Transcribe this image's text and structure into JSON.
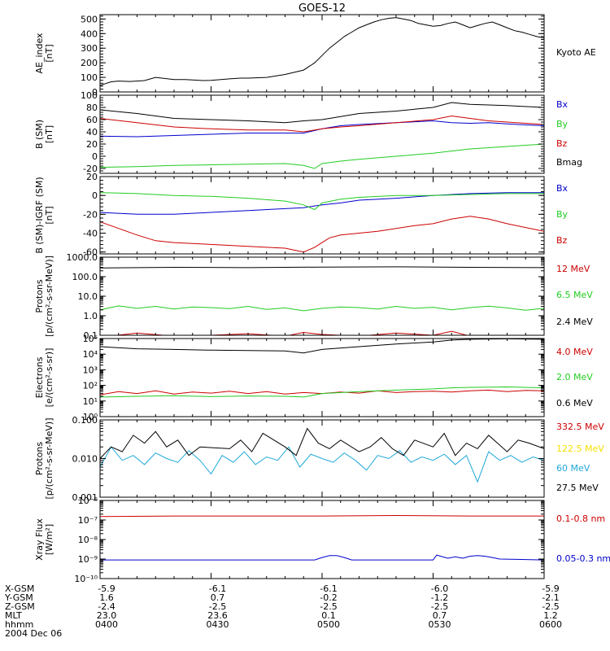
{
  "title": "GOES-12",
  "colors": {
    "black": "#000000",
    "red": "#cc0000",
    "green": "#22cc22",
    "blue": "#0000cc",
    "yellow": "#f5e000",
    "cyan": "#20a8d8",
    "frame": "#000000"
  },
  "x_axis": {
    "range": [
      0,
      120
    ],
    "ticks": [
      0,
      30,
      60,
      90,
      120
    ]
  },
  "chart_data": [
    {
      "id": "ae",
      "type": "line",
      "ylabel": [
        "AE_index",
        "[nT]"
      ],
      "ylim": [
        0,
        530
      ],
      "scale": "linear",
      "yticks": [
        0,
        100,
        200,
        300,
        400,
        500
      ],
      "yticklabels": [
        "0",
        "100",
        "200",
        "300",
        "400",
        "500"
      ],
      "series": [
        {
          "name": "Kyoto AE",
          "color": "#000000",
          "x": [
            0,
            3,
            5,
            8,
            10,
            12,
            15,
            20,
            23,
            25,
            28,
            30,
            35,
            38,
            40,
            45,
            50,
            55,
            58,
            60,
            62,
            64,
            66,
            68,
            70,
            72,
            74,
            76,
            78,
            80,
            82,
            84,
            86,
            88,
            90,
            92,
            94,
            96,
            98,
            100,
            102,
            104,
            106,
            108,
            110,
            112,
            114,
            116,
            118,
            120
          ],
          "y": [
            45,
            70,
            75,
            72,
            75,
            78,
            100,
            85,
            85,
            82,
            78,
            80,
            90,
            95,
            95,
            100,
            120,
            150,
            200,
            250,
            300,
            340,
            380,
            410,
            440,
            460,
            480,
            495,
            505,
            510,
            500,
            490,
            470,
            460,
            450,
            455,
            470,
            480,
            460,
            440,
            455,
            470,
            480,
            460,
            440,
            420,
            410,
            395,
            380,
            370
          ]
        }
      ]
    },
    {
      "id": "bsm",
      "type": "line",
      "ylabel": [
        "B (SM)",
        "[nT]"
      ],
      "ylim": [
        -28,
        100
      ],
      "scale": "linear",
      "yticks": [
        -20,
        0,
        20,
        40,
        60,
        80,
        100
      ],
      "yticklabels": [
        "-20",
        "0",
        "20",
        "40",
        "60",
        "80",
        "100"
      ],
      "series": [
        {
          "name": "Bx",
          "color": "#0000cc",
          "x": [
            0,
            10,
            20,
            30,
            40,
            55,
            60,
            65,
            70,
            80,
            90,
            95,
            100,
            105,
            110,
            120
          ],
          "y": [
            33,
            32,
            34,
            36,
            38,
            38,
            45,
            50,
            52,
            55,
            58,
            55,
            54,
            55,
            53,
            50
          ]
        },
        {
          "name": "By",
          "color": "#22cc22",
          "x": [
            0,
            10,
            20,
            30,
            40,
            50,
            55,
            58,
            60,
            65,
            70,
            80,
            90,
            100,
            110,
            120
          ],
          "y": [
            -18,
            -17,
            -15,
            -14,
            -13,
            -12,
            -15,
            -20,
            -12,
            -8,
            -5,
            0,
            5,
            12,
            16,
            20
          ]
        },
        {
          "name": "Bz",
          "color": "#cc0000",
          "x": [
            0,
            10,
            20,
            30,
            40,
            50,
            55,
            60,
            65,
            70,
            80,
            90,
            95,
            100,
            105,
            110,
            120
          ],
          "y": [
            62,
            55,
            48,
            45,
            43,
            43,
            40,
            45,
            48,
            50,
            55,
            60,
            66,
            62,
            58,
            56,
            52
          ]
        },
        {
          "name": "Bmag",
          "color": "#000000",
          "x": [
            0,
            10,
            20,
            30,
            40,
            50,
            55,
            60,
            65,
            70,
            80,
            90,
            95,
            100,
            105,
            110,
            120
          ],
          "y": [
            76,
            70,
            62,
            60,
            58,
            55,
            58,
            60,
            65,
            70,
            74,
            80,
            88,
            85,
            84,
            83,
            80
          ]
        }
      ]
    },
    {
      "id": "bigrf",
      "type": "line",
      "ylabel": [
        "B (SM)-IGRF (SM)",
        "[nT]"
      ],
      "ylim": [
        -62,
        20
      ],
      "scale": "linear",
      "yticks": [
        -60,
        -40,
        -20,
        0,
        20
      ],
      "yticklabels": [
        "-60",
        "-40",
        "-20",
        "0",
        "20"
      ],
      "series": [
        {
          "name": "Bx",
          "color": "#0000cc",
          "x": [
            0,
            10,
            20,
            30,
            40,
            50,
            55,
            60,
            65,
            70,
            80,
            90,
            100,
            110,
            120
          ],
          "y": [
            -18,
            -20,
            -20,
            -18,
            -16,
            -14,
            -13,
            -10,
            -8,
            -5,
            -3,
            0,
            2,
            3,
            3
          ]
        },
        {
          "name": "By",
          "color": "#22cc22",
          "x": [
            0,
            10,
            20,
            30,
            40,
            50,
            55,
            58,
            60,
            65,
            70,
            80,
            90,
            100,
            110,
            120
          ],
          "y": [
            3,
            2,
            0,
            -1,
            -3,
            -6,
            -10,
            -15,
            -8,
            -4,
            -2,
            0,
            0,
            1,
            2,
            2
          ]
        },
        {
          "name": "Bz",
          "color": "#cc0000",
          "x": [
            0,
            5,
            10,
            15,
            20,
            30,
            40,
            50,
            55,
            58,
            60,
            62,
            65,
            70,
            75,
            80,
            85,
            90,
            95,
            100,
            105,
            110,
            115,
            120
          ],
          "y": [
            -28,
            -35,
            -42,
            -48,
            -50,
            -52,
            -54,
            -56,
            -60,
            -55,
            -50,
            -45,
            -42,
            -40,
            -38,
            -35,
            -32,
            -30,
            -25,
            -22,
            -25,
            -30,
            -34,
            -38
          ]
        }
      ]
    },
    {
      "id": "protons_low",
      "type": "line",
      "ylabel": [
        "Protons",
        "[p/(cm²-s-sr-MeV)]"
      ],
      "ylim": [
        0.1,
        1000
      ],
      "scale": "log",
      "yticks": [
        0.1,
        1,
        10,
        100,
        1000
      ],
      "yticklabels": [
        "0.1",
        "1.0",
        "10.0",
        "100.0",
        "1000.0"
      ],
      "series": [
        {
          "name": "12 MeV",
          "color": "#cc0000",
          "x": [
            0,
            10,
            20,
            30,
            40,
            50,
            55,
            60,
            70,
            80,
            90,
            95,
            100,
            110,
            120
          ],
          "y": [
            0.08,
            0.13,
            0.09,
            0.1,
            0.12,
            0.09,
            0.14,
            0.11,
            0.09,
            0.13,
            0.1,
            0.16,
            0.09,
            0.08,
            0.1
          ]
        },
        {
          "name": "6.5 MeV",
          "color": "#22cc22",
          "x": [
            0,
            5,
            10,
            15,
            20,
            25,
            30,
            35,
            40,
            45,
            50,
            55,
            60,
            65,
            70,
            75,
            80,
            85,
            90,
            95,
            100,
            105,
            110,
            115,
            120
          ],
          "y": [
            2.0,
            3.2,
            2.4,
            3.0,
            2.2,
            2.8,
            2.6,
            2.3,
            3.0,
            2.1,
            2.5,
            1.8,
            2.4,
            2.8,
            2.6,
            2.2,
            3.0,
            2.4,
            2.7,
            2.0,
            2.6,
            3.1,
            2.5,
            1.9,
            2.4
          ]
        },
        {
          "name": "2.4 MeV",
          "color": "#000000",
          "x": [
            0,
            20,
            40,
            60,
            80,
            100,
            120
          ],
          "y": [
            280,
            300,
            290,
            310,
            320,
            300,
            290
          ]
        }
      ]
    },
    {
      "id": "electrons",
      "type": "line",
      "ylabel": [
        "Electrons",
        "[e/(cm²-s-sr)]"
      ],
      "ylim": [
        1,
        100000
      ],
      "scale": "log",
      "yticks": [
        1,
        10,
        100,
        1000,
        10000,
        100000
      ],
      "yticklabels": [
        "10⁰",
        "10¹",
        "10²",
        "10³",
        "10⁴",
        "10⁵"
      ],
      "series": [
        {
          "name": "4.0 MeV",
          "color": "#cc0000",
          "x": [
            0,
            5,
            10,
            15,
            20,
            25,
            30,
            35,
            40,
            45,
            50,
            55,
            60,
            65,
            70,
            75,
            80,
            85,
            90,
            95,
            100,
            105,
            110,
            115,
            120
          ],
          "y": [
            25,
            40,
            30,
            45,
            28,
            38,
            32,
            42,
            30,
            40,
            28,
            35,
            30,
            38,
            32,
            45,
            35,
            40,
            42,
            38,
            45,
            50,
            40,
            48,
            45
          ]
        },
        {
          "name": "2.0 MeV",
          "color": "#22cc22",
          "x": [
            0,
            10,
            20,
            30,
            40,
            50,
            55,
            60,
            70,
            80,
            90,
            95,
            100,
            110,
            120
          ],
          "y": [
            18,
            20,
            22,
            19,
            21,
            20,
            18,
            30,
            40,
            50,
            60,
            70,
            75,
            80,
            70
          ]
        },
        {
          "name": "0.6 MeV",
          "color": "#000000",
          "x": [
            0,
            10,
            20,
            30,
            40,
            50,
            55,
            60,
            70,
            80,
            90,
            95,
            100,
            110,
            120
          ],
          "y": [
            30000,
            22000,
            20000,
            18000,
            17000,
            16000,
            12000,
            20000,
            30000,
            45000,
            60000,
            80000,
            90000,
            95000,
            90000
          ]
        }
      ]
    },
    {
      "id": "protons_high",
      "type": "line",
      "ylabel": [
        "Protons",
        "[p/(cm²-s-sr-MeV)]"
      ],
      "ylim": [
        0.001,
        0.1
      ],
      "scale": "log",
      "yticks": [
        0.001,
        0.01,
        0.1
      ],
      "yticklabels": [
        "0.001",
        "0.010",
        "0.100"
      ],
      "series": [
        {
          "name": "332.5 MeV",
          "color": "#cc0000",
          "x": [],
          "y": []
        },
        {
          "name": "122.5 MeV",
          "color": "#f5e000",
          "x": [],
          "y": []
        },
        {
          "name": "60 MeV",
          "color": "#20a8d8",
          "x": [
            0,
            3,
            6,
            9,
            12,
            15,
            18,
            21,
            24,
            27,
            30,
            33,
            36,
            39,
            42,
            45,
            48,
            51,
            54,
            57,
            60,
            63,
            66,
            69,
            72,
            75,
            78,
            81,
            84,
            87,
            90,
            93,
            96,
            99,
            102,
            105,
            108,
            111,
            114,
            117,
            120
          ],
          "y": [
            0.006,
            0.02,
            0.009,
            0.012,
            0.007,
            0.014,
            0.01,
            0.008,
            0.016,
            0.009,
            0.004,
            0.012,
            0.008,
            0.015,
            0.007,
            0.011,
            0.009,
            0.02,
            0.006,
            0.013,
            0.01,
            0.008,
            0.014,
            0.009,
            0.005,
            0.012,
            0.01,
            0.016,
            0.008,
            0.011,
            0.009,
            0.013,
            0.007,
            0.012,
            0.0025,
            0.015,
            0.009,
            0.012,
            0.008,
            0.011,
            0.009
          ]
        },
        {
          "name": "27.5 MeV",
          "color": "#000000",
          "x": [
            0,
            3,
            6,
            9,
            12,
            15,
            18,
            21,
            24,
            27,
            35,
            38,
            41,
            44,
            50,
            53,
            56,
            59,
            62,
            65,
            70,
            73,
            76,
            79,
            82,
            85,
            90,
            93,
            96,
            99,
            102,
            105,
            110,
            113,
            116,
            120
          ],
          "y": [
            0.01,
            0.02,
            0.015,
            0.04,
            0.025,
            0.05,
            0.02,
            0.03,
            0.012,
            0.02,
            0.018,
            0.03,
            0.015,
            0.045,
            0.02,
            0.012,
            0.06,
            0.025,
            0.018,
            0.03,
            0.015,
            0.02,
            0.035,
            0.018,
            0.012,
            0.03,
            0.02,
            0.045,
            0.012,
            0.025,
            0.018,
            0.04,
            0.015,
            0.03,
            0.025,
            0.018
          ]
        }
      ]
    },
    {
      "id": "xray",
      "type": "line",
      "ylabel": [
        "Xray Flux",
        "[W/m²]"
      ],
      "ylim": [
        1e-10,
        1e-06
      ],
      "scale": "log",
      "yticks": [
        1e-10,
        1e-09,
        1e-08,
        1e-07,
        1e-06
      ],
      "yticklabels": [
        "10⁻¹⁰",
        "10⁻⁹",
        "10⁻⁸",
        "10⁻⁷",
        "10⁻⁶"
      ],
      "series": [
        {
          "name": "0.1-0.8 nm",
          "color": "#cc0000",
          "x": [
            0,
            20,
            40,
            60,
            80,
            100,
            120
          ],
          "y": [
            1.5e-07,
            1.6e-07,
            1.6e-07,
            1.6e-07,
            1.7e-07,
            1.6e-07,
            1.6e-07
          ]
        },
        {
          "name": "0.05-0.3 nm",
          "color": "#0000cc",
          "x": [
            0,
            10,
            20,
            30,
            40,
            50,
            58,
            60,
            62,
            64,
            66,
            68,
            70,
            72,
            80,
            90,
            91,
            92,
            94,
            96,
            98,
            100,
            102,
            104,
            106,
            108,
            120
          ],
          "y": [
            9e-10,
            9e-10,
            9e-10,
            9e-10,
            9e-10,
            9e-10,
            9e-10,
            1.2e-09,
            1.5e-09,
            1.5e-09,
            1.2e-09,
            9e-10,
            9e-10,
            9e-10,
            9e-10,
            9e-10,
            1.6e-09,
            1.4e-09,
            1.1e-09,
            1.3e-09,
            1.1e-09,
            1.4e-09,
            1.5e-09,
            1.4e-09,
            1.2e-09,
            1e-09,
            9e-10
          ]
        }
      ]
    }
  ],
  "footer": {
    "rows": [
      {
        "label": "X-GSM",
        "values": [
          "-5.9",
          "-6.1",
          "-6.1",
          "-6.0",
          "-5.9"
        ]
      },
      {
        "label": "Y-GSM",
        "values": [
          "1.6",
          "0.7",
          "-0.2",
          "-1.2",
          "-2.1"
        ]
      },
      {
        "label": "Z-GSM",
        "values": [
          "-2.4",
          "-2.5",
          "-2.5",
          "-2.5",
          "-2.5"
        ]
      },
      {
        "label": "MLT",
        "values": [
          "23.0",
          "23.6",
          "0.1",
          "0.7",
          "1.2"
        ]
      },
      {
        "label": "hhmm",
        "values": [
          "0400",
          "0430",
          "0500",
          "0530",
          "0600"
        ]
      }
    ],
    "date": "2004 Dec 06"
  }
}
